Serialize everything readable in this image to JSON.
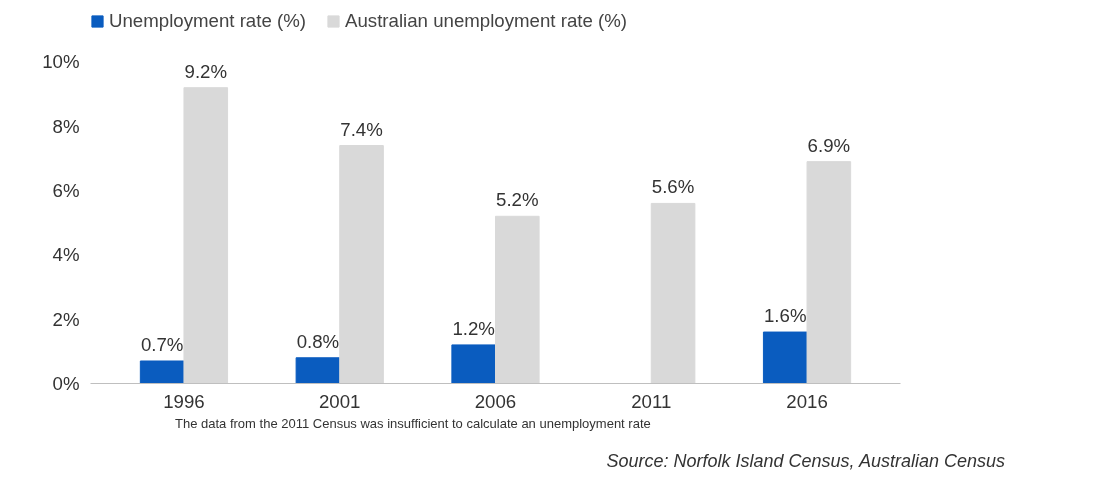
{
  "chart_data": {
    "type": "bar",
    "categories": [
      "1996",
      "2001",
      "2006",
      "2011",
      "2016"
    ],
    "series": [
      {
        "name": "Unemployment rate (%)",
        "color": "#0a5cbf",
        "values": [
          0.7,
          0.8,
          1.2,
          null,
          1.6
        ],
        "value_labels": [
          "0.7%",
          "0.8%",
          "1.2%",
          null,
          "1.6%"
        ]
      },
      {
        "name": "Australian unemployment rate (%)",
        "color": "#d9d9d9",
        "values": [
          9.2,
          7.4,
          5.2,
          5.6,
          6.9
        ],
        "value_labels": [
          "9.2%",
          "7.4%",
          "5.2%",
          "5.6%",
          "6.9%"
        ]
      }
    ],
    "ylim": [
      0,
      11.6
    ],
    "yticks": [
      {
        "value": 0,
        "label": "0%"
      },
      {
        "value": 2,
        "label": "2%"
      },
      {
        "value": 4,
        "label": "4%"
      },
      {
        "value": 6,
        "label": "6%"
      },
      {
        "value": 8,
        "label": "8%"
      },
      {
        "value": 10,
        "label": "10%"
      }
    ],
    "grid": false,
    "legend": "top left",
    "annotations": [
      "The data from the 2011 Census was insufficient to calculate an unemployment rate",
      "Source: Norfolk Island Census, Australian Census"
    ]
  }
}
